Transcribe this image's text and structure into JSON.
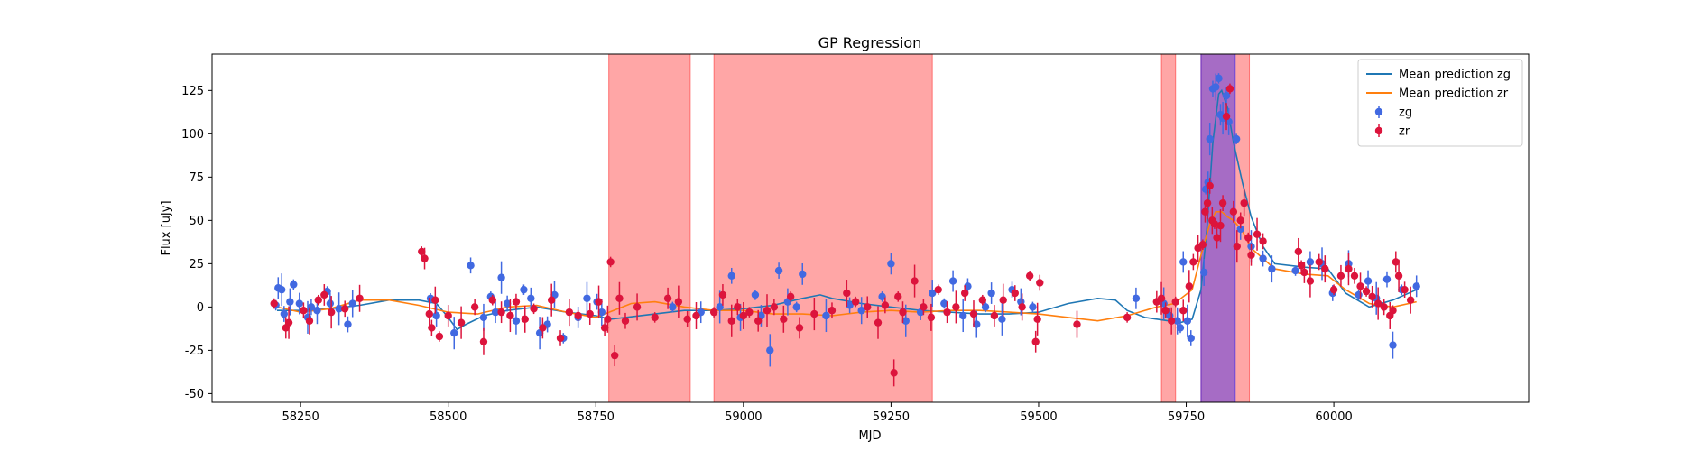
{
  "chart_data": {
    "type": "scatter",
    "title": "GP Regression",
    "xlabel": "MJD",
    "ylabel": "Flux [uJy]",
    "xlim": [
      58100,
      60330
    ],
    "ylim": [
      -55,
      146
    ],
    "xticks": [
      58250,
      58500,
      58750,
      59000,
      59250,
      59500,
      59750,
      60000
    ],
    "yticks": [
      -50,
      -25,
      0,
      25,
      50,
      75,
      100,
      125
    ],
    "legend": {
      "placement": "top-right",
      "entries": [
        {
          "label": "Mean prediction zg",
          "kind": "line",
          "color": "#1f77b4"
        },
        {
          "label": "Mean prediction zr",
          "kind": "line",
          "color": "#ff7f0e"
        },
        {
          "label": "zg",
          "kind": "errorbar",
          "color": "#4169e1"
        },
        {
          "label": "zr",
          "kind": "errorbar",
          "color": "#dc143c"
        }
      ]
    },
    "shaded_regions": [
      {
        "x0": 58772,
        "x1": 58910,
        "color": "#ff0000",
        "opacity": 0.35
      },
      {
        "x0": 58950,
        "x1": 59320,
        "color": "#ff0000",
        "opacity": 0.35
      },
      {
        "x0": 59708,
        "x1": 59732,
        "color": "#ff0000",
        "opacity": 0.35
      },
      {
        "x0": 59775,
        "x1": 59857,
        "color": "#ff0000",
        "opacity": 0.35
      },
      {
        "x0": 59775,
        "x1": 59833,
        "color": "#0000ff",
        "opacity": 0.35
      }
    ],
    "mean_predictions": [
      {
        "name": "Mean prediction zg",
        "color": "#1f77b4",
        "x": [
          58210,
          58250,
          58300,
          58350,
          58400,
          58450,
          58480,
          58500,
          58515,
          58530,
          58560,
          58600,
          58650,
          58700,
          58750,
          58775,
          58800,
          58850,
          58900,
          58950,
          59000,
          59050,
          59100,
          59130,
          59150,
          59200,
          59250,
          59300,
          59350,
          59400,
          59450,
          59500,
          59550,
          59600,
          59630,
          59650,
          59680,
          59700,
          59720,
          59740,
          59760,
          59775,
          59785,
          59795,
          59805,
          59810,
          59820,
          59830,
          59845,
          59860,
          59880,
          59900,
          59950,
          59990,
          60020,
          60060,
          60100,
          60140
        ],
        "y": [
          -2,
          -2,
          -1,
          1,
          4,
          4,
          2,
          -6,
          -13,
          -10,
          -5,
          -2,
          0,
          -3,
          -5,
          -7,
          -6,
          -4,
          -2,
          -2,
          -1,
          1,
          5,
          7,
          5,
          2,
          0,
          -2,
          -3,
          -4,
          -4,
          -3,
          2,
          5,
          4,
          -2,
          -6,
          -7,
          -8,
          -9,
          -7,
          10,
          45,
          95,
          123,
          125,
          115,
          95,
          72,
          52,
          35,
          25,
          23,
          22,
          8,
          0,
          4,
          10
        ]
      },
      {
        "name": "Mean prediction zr",
        "color": "#ff7f0e",
        "x": [
          58210,
          58250,
          58300,
          58350,
          58400,
          58450,
          58500,
          58550,
          58600,
          58650,
          58700,
          58750,
          58780,
          58810,
          58850,
          58900,
          58950,
          59000,
          59050,
          59100,
          59150,
          59200,
          59250,
          59300,
          59350,
          59400,
          59450,
          59500,
          59550,
          59600,
          59650,
          59700,
          59730,
          59760,
          59775,
          59790,
          59800,
          59810,
          59820,
          59830,
          59845,
          59860,
          59880,
          59900,
          59950,
          59990,
          60020,
          60060,
          60100,
          60140
        ],
        "y": [
          0,
          -3,
          -1,
          4,
          4,
          1,
          -3,
          -4,
          0,
          1,
          -3,
          -6,
          -2,
          2,
          3,
          0,
          -2,
          -2,
          -4,
          -4,
          -5,
          -3,
          -2,
          -3,
          -2,
          -2,
          -3,
          -4,
          -6,
          -8,
          -5,
          0,
          2,
          10,
          30,
          48,
          55,
          55,
          52,
          50,
          44,
          34,
          28,
          22,
          19,
          18,
          10,
          2,
          0,
          3
        ]
      }
    ],
    "series": [
      {
        "name": "zg",
        "color": "#4169e1",
        "x": [
          58208,
          58212,
          58218,
          58222,
          58232,
          58238,
          58248,
          58262,
          58268,
          58278,
          58295,
          58300,
          58315,
          58330,
          58338,
          58470,
          58480,
          58510,
          58538,
          58560,
          58572,
          58580,
          58590,
          58600,
          58615,
          58628,
          58640,
          58655,
          58668,
          58680,
          58695,
          58720,
          58735,
          58752,
          58760,
          58880,
          58928,
          58960,
          58980,
          58995,
          59020,
          59030,
          59045,
          59060,
          59075,
          59090,
          59100,
          59140,
          59180,
          59200,
          59235,
          59250,
          59275,
          59300,
          59320,
          59340,
          59355,
          59372,
          59380,
          59395,
          59410,
          59420,
          59438,
          59455,
          59470,
          59490,
          59665,
          59712,
          59722,
          59735,
          59740,
          59745,
          59752,
          59758,
          59780,
          59783,
          59787,
          59790,
          59795,
          59800,
          59805,
          59808,
          59812,
          59818,
          59822,
          59835,
          59842,
          59860,
          59880,
          59895,
          59935,
          59960,
          59980,
          59998,
          60025,
          60042,
          60058,
          60072,
          60090,
          60100,
          60115,
          60140
        ],
        "y": [
          1,
          11,
          10,
          -4,
          3,
          13,
          2,
          -6,
          0,
          -2,
          9,
          2,
          -1,
          -10,
          2,
          5,
          -5,
          -15,
          24,
          -6,
          6,
          -3,
          17,
          2,
          -8,
          10,
          5,
          -15,
          -10,
          7,
          -18,
          -6,
          5,
          3,
          -3,
          0,
          -3,
          0,
          18,
          -6,
          7,
          -5,
          -25,
          21,
          3,
          0,
          19,
          -5,
          1,
          -2,
          6,
          25,
          -8,
          -3,
          8,
          2,
          15,
          -5,
          12,
          -10,
          0,
          8,
          -7,
          10,
          3,
          0,
          5,
          2,
          -5,
          -8,
          -12,
          26,
          -8,
          -18,
          20,
          68,
          72,
          97,
          126,
          127,
          132,
          111,
          109,
          122,
          107,
          97,
          45,
          35,
          28,
          22,
          21,
          26,
          25,
          8,
          25,
          7,
          15,
          5,
          16,
          -22,
          10,
          12
        ]
      },
      {
        "name": "zr",
        "color": "#dc143c",
        "x": [
          58205,
          58225,
          58230,
          58255,
          58265,
          58280,
          58290,
          58302,
          58325,
          58350,
          58455,
          58460,
          58468,
          58472,
          58478,
          58485,
          58500,
          58522,
          58545,
          58560,
          58575,
          58590,
          58605,
          58615,
          58630,
          58645,
          58660,
          58675,
          58690,
          58705,
          58720,
          58740,
          58755,
          58765,
          58770,
          58775,
          58782,
          58790,
          58800,
          58820,
          58850,
          58872,
          58890,
          58905,
          58920,
          58950,
          58965,
          58980,
          58990,
          59000,
          59010,
          59025,
          59040,
          59052,
          59068,
          59080,
          59095,
          59120,
          59150,
          59175,
          59190,
          59210,
          59228,
          59240,
          59255,
          59262,
          59270,
          59290,
          59305,
          59318,
          59330,
          59345,
          59360,
          59375,
          59390,
          59405,
          59425,
          59440,
          59460,
          59472,
          59485,
          59495,
          59498,
          59502,
          59565,
          59650,
          59700,
          59708,
          59715,
          59725,
          59732,
          59745,
          59755,
          59762,
          59770,
          59778,
          59782,
          59786,
          59790,
          59794,
          59798,
          59802,
          59808,
          59812,
          59818,
          59824,
          59830,
          59836,
          59842,
          59848,
          59855,
          59860,
          59870,
          59880,
          59940,
          59945,
          59950,
          59960,
          59975,
          59985,
          60000,
          60012,
          60025,
          60035,
          60045,
          60055,
          60065,
          60075,
          60085,
          60095,
          60100,
          60105,
          60110,
          60120,
          60130
        ],
        "y": [
          2,
          -12,
          -9,
          -2,
          -8,
          4,
          7,
          -3,
          -1,
          5,
          32,
          28,
          -4,
          -12,
          4,
          -17,
          -5,
          -9,
          0,
          -20,
          4,
          -3,
          -5,
          3,
          -7,
          -1,
          -12,
          4,
          -18,
          -3,
          -5,
          -4,
          3,
          -12,
          -7,
          26,
          -28,
          5,
          -8,
          0,
          -6,
          5,
          3,
          -7,
          -5,
          -3,
          7,
          -8,
          0,
          -5,
          -3,
          -8,
          -2,
          0,
          -7,
          6,
          -12,
          -4,
          -2,
          8,
          3,
          0,
          -9,
          1,
          -38,
          6,
          -3,
          15,
          0,
          -6,
          10,
          -3,
          0,
          8,
          -4,
          4,
          -5,
          4,
          8,
          0,
          18,
          -20,
          -7,
          14,
          -10,
          -6,
          3,
          5,
          -2,
          -8,
          3,
          -2,
          12,
          26,
          34,
          36,
          55,
          60,
          70,
          50,
          48,
          40,
          47,
          60,
          110,
          126,
          55,
          35,
          50,
          60,
          40,
          30,
          42,
          38,
          32,
          24,
          20,
          15,
          26,
          22,
          10,
          18,
          22,
          18,
          12,
          9,
          6,
          2,
          0,
          -5,
          -2,
          26,
          18,
          10,
          4
        ]
      }
    ]
  }
}
